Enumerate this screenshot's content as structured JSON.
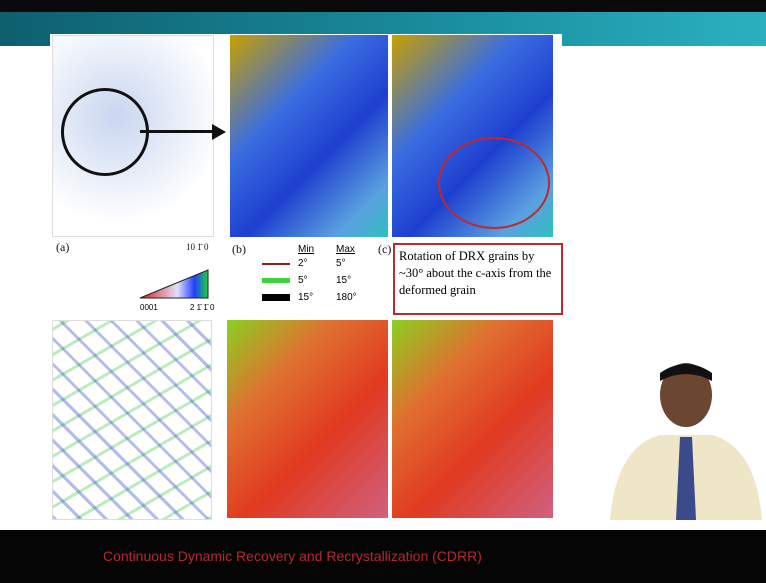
{
  "slide": {
    "panels": {
      "a": "(a)",
      "b": "(b)",
      "c": "(c)"
    },
    "ipf_label": "10 1̄ 0",
    "legend": {
      "headers": [
        "Min",
        "Max"
      ],
      "rows": [
        [
          "2°",
          "5°"
        ],
        [
          "5°",
          "15°"
        ],
        [
          "15°",
          "180°"
        ]
      ]
    },
    "triangle": {
      "left": "0001",
      "right": "2 1̄ 1̄ 0"
    },
    "callout": "Rotation of DRX grains by ~30° about the c-axis from the deformed grain"
  },
  "caption": "Continuous Dynamic Recovery and Recrystallization (CDRR)"
}
